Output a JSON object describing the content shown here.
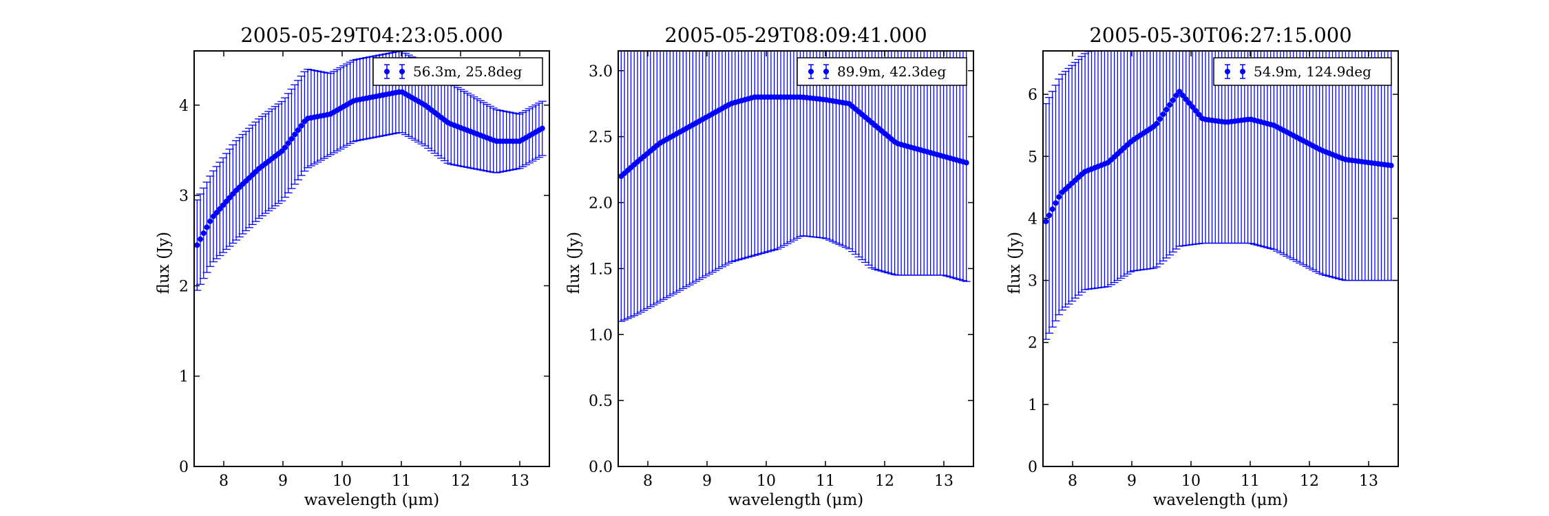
{
  "chart_data": [
    {
      "type": "scatter",
      "title": "2005-05-29T04:23:05.000",
      "xlabel": "wavelength (μm)",
      "ylabel": "flux (Jy)",
      "xlim": [
        7.5,
        13.5
      ],
      "ylim": [
        0,
        4.6
      ],
      "xticks": [
        "8",
        "9",
        "10",
        "11",
        "12",
        "13"
      ],
      "yticks": [
        "0",
        "1",
        "2",
        "3",
        "4"
      ],
      "grid": false,
      "legend_position": "top-right",
      "series": [
        {
          "name": "56.3m, 25.8deg",
          "x": [
            7.55,
            7.8,
            8.2,
            8.6,
            9.0,
            9.4,
            9.8,
            10.2,
            10.6,
            11.0,
            11.4,
            11.8,
            12.2,
            12.6,
            13.0,
            13.4
          ],
          "y": [
            2.45,
            2.75,
            3.05,
            3.3,
            3.5,
            3.85,
            3.9,
            4.05,
            4.1,
            4.15,
            4.0,
            3.8,
            3.7,
            3.6,
            3.6,
            3.75
          ],
          "yerr": [
            0.5,
            0.5,
            0.55,
            0.55,
            0.55,
            0.55,
            0.45,
            0.45,
            0.45,
            0.45,
            0.45,
            0.45,
            0.4,
            0.35,
            0.3,
            0.3
          ]
        }
      ]
    },
    {
      "type": "scatter",
      "title": "2005-05-29T08:09:41.000",
      "xlabel": "wavelength (μm)",
      "ylabel": "flux (Jy)",
      "xlim": [
        7.5,
        13.5
      ],
      "ylim": [
        0,
        3.15
      ],
      "xticks": [
        "8",
        "9",
        "10",
        "11",
        "12",
        "13"
      ],
      "yticks": [
        "0.0",
        "0.5",
        "1.0",
        "1.5",
        "2.0",
        "2.5",
        "3.0"
      ],
      "grid": false,
      "legend_position": "top-right",
      "series": [
        {
          "name": "89.9m, 42.3deg",
          "x": [
            7.55,
            7.8,
            8.2,
            8.6,
            9.0,
            9.4,
            9.8,
            10.2,
            10.6,
            11.0,
            11.4,
            11.8,
            12.2,
            12.6,
            13.0,
            13.4
          ],
          "y": [
            2.2,
            2.3,
            2.45,
            2.55,
            2.65,
            2.75,
            2.8,
            2.8,
            2.8,
            2.78,
            2.75,
            2.6,
            2.45,
            2.4,
            2.35,
            2.3
          ],
          "yerr": [
            1.1,
            1.15,
            1.2,
            1.2,
            1.2,
            1.2,
            1.2,
            1.15,
            1.05,
            1.05,
            1.1,
            1.1,
            1.0,
            0.95,
            0.9,
            0.9
          ]
        }
      ]
    },
    {
      "type": "scatter",
      "title": "2005-05-30T06:27:15.000",
      "xlabel": "wavelength (μm)",
      "ylabel": "flux (Jy)",
      "xlim": [
        7.5,
        13.5
      ],
      "ylim": [
        0,
        6.7
      ],
      "xticks": [
        "8",
        "9",
        "10",
        "11",
        "12",
        "13"
      ],
      "yticks": [
        "0",
        "1",
        "2",
        "3",
        "4",
        "5",
        "6"
      ],
      "grid": false,
      "legend_position": "top-right",
      "series": [
        {
          "name": "54.9m, 124.9deg",
          "x": [
            7.55,
            7.8,
            8.2,
            8.6,
            9.0,
            9.4,
            9.8,
            10.2,
            10.6,
            11.0,
            11.4,
            11.8,
            12.2,
            12.6,
            13.0,
            13.4
          ],
          "y": [
            3.95,
            4.4,
            4.75,
            4.9,
            5.25,
            5.5,
            6.05,
            5.6,
            5.55,
            5.6,
            5.5,
            5.3,
            5.1,
            4.95,
            4.9,
            4.85
          ],
          "yerr": [
            1.9,
            1.9,
            1.9,
            2.0,
            2.1,
            2.3,
            2.5,
            2.0,
            1.95,
            2.0,
            2.0,
            2.0,
            2.0,
            1.95,
            1.9,
            1.85
          ]
        }
      ]
    }
  ]
}
